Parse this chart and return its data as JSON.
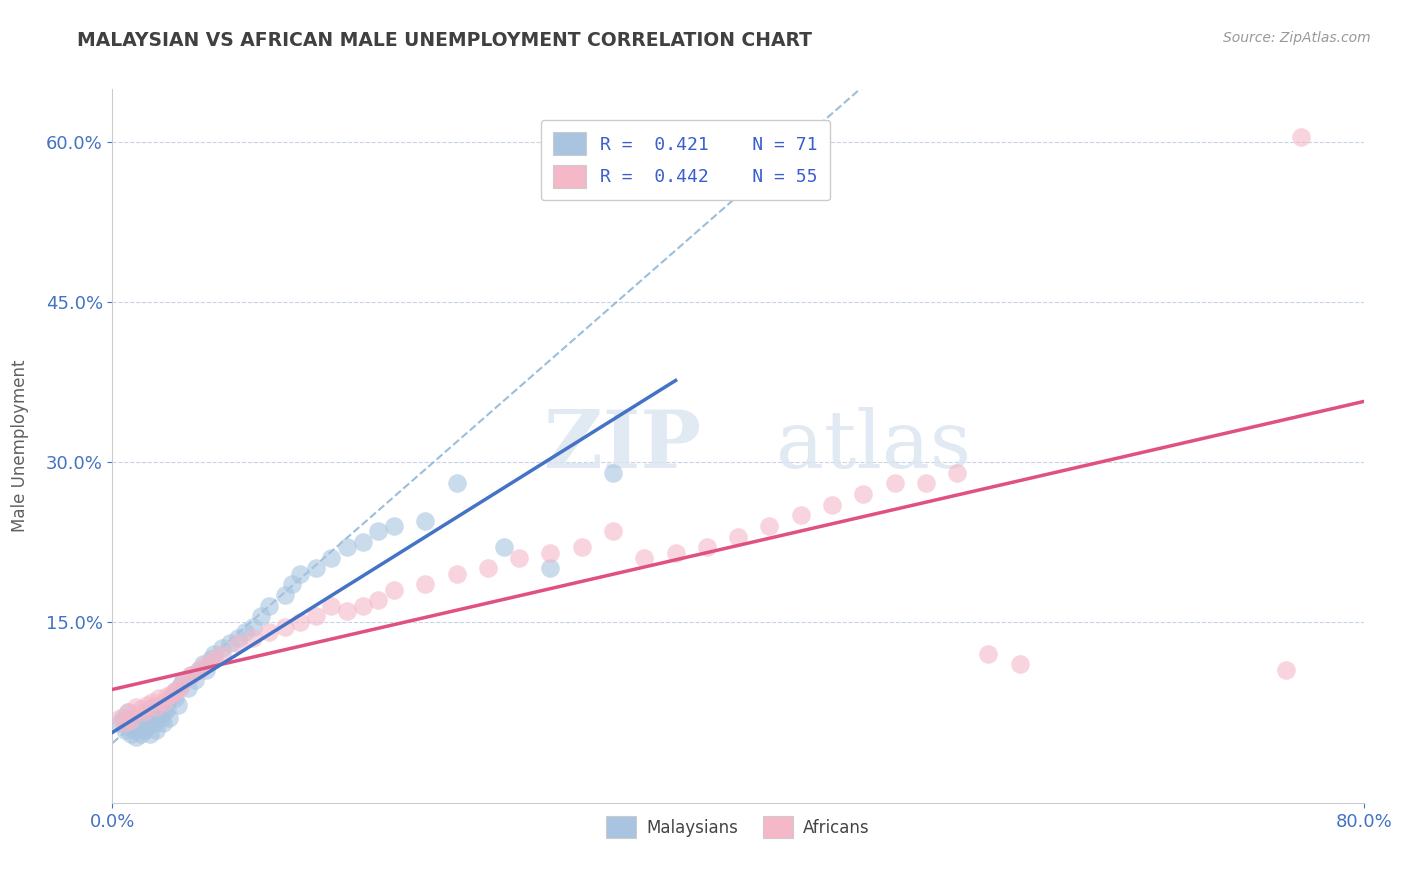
{
  "title": "MALAYSIAN VS AFRICAN MALE UNEMPLOYMENT CORRELATION CHART",
  "source": "Source: ZipAtlas.com",
  "ylabel": "Male Unemployment",
  "xlabel": "",
  "xlim": [
    0.0,
    0.8
  ],
  "ylim": [
    -0.02,
    0.65
  ],
  "ytick_positions": [
    0.15,
    0.3,
    0.45,
    0.6
  ],
  "watermark_zip": "ZIP",
  "watermark_atlas": "atlas",
  "legend_line1": "R =  0.421    N = 71",
  "legend_line2": "R =  0.442    N = 55",
  "legend_label_malaysian": "Malaysians",
  "legend_label_african": "Africans",
  "color_malaysian": "#a8c4e0",
  "color_african": "#f4b8c8",
  "trendline_malaysian_color": "#4472c4",
  "trendline_african_color": "#e05080",
  "trendline_dashed_color": "#90b8d8",
  "grid_color": "#c8d4e4",
  "background_color": "#ffffff",
  "title_color": "#404040",
  "axis_label_color": "#606060",
  "tick_color": "#4472c4",
  "malaysian_x": [
    0.005,
    0.007,
    0.008,
    0.01,
    0.01,
    0.01,
    0.012,
    0.012,
    0.013,
    0.014,
    0.015,
    0.015,
    0.015,
    0.016,
    0.017,
    0.018,
    0.02,
    0.02,
    0.021,
    0.022,
    0.022,
    0.023,
    0.024,
    0.025,
    0.025,
    0.026,
    0.027,
    0.028,
    0.03,
    0.03,
    0.031,
    0.032,
    0.033,
    0.035,
    0.035,
    0.036,
    0.038,
    0.04,
    0.04,
    0.042,
    0.043,
    0.045,
    0.048,
    0.05,
    0.053,
    0.055,
    0.058,
    0.06,
    0.063,
    0.065,
    0.07,
    0.075,
    0.08,
    0.085,
    0.09,
    0.095,
    0.1,
    0.11,
    0.115,
    0.12,
    0.13,
    0.14,
    0.15,
    0.16,
    0.17,
    0.18,
    0.2,
    0.22,
    0.25,
    0.28,
    0.32
  ],
  "malaysian_y": [
    0.055,
    0.06,
    0.048,
    0.065,
    0.058,
    0.052,
    0.05,
    0.045,
    0.06,
    0.055,
    0.048,
    0.052,
    0.042,
    0.058,
    0.05,
    0.045,
    0.055,
    0.05,
    0.048,
    0.06,
    0.052,
    0.058,
    0.045,
    0.065,
    0.07,
    0.06,
    0.055,
    0.048,
    0.07,
    0.065,
    0.06,
    0.055,
    0.065,
    0.075,
    0.068,
    0.06,
    0.08,
    0.085,
    0.078,
    0.072,
    0.09,
    0.095,
    0.088,
    0.1,
    0.095,
    0.105,
    0.11,
    0.105,
    0.115,
    0.12,
    0.125,
    0.13,
    0.135,
    0.14,
    0.145,
    0.155,
    0.165,
    0.175,
    0.185,
    0.195,
    0.2,
    0.21,
    0.22,
    0.225,
    0.235,
    0.24,
    0.245,
    0.28,
    0.22,
    0.2,
    0.29
  ],
  "african_x": [
    0.005,
    0.008,
    0.01,
    0.012,
    0.015,
    0.018,
    0.02,
    0.022,
    0.025,
    0.028,
    0.03,
    0.033,
    0.035,
    0.038,
    0.04,
    0.043,
    0.046,
    0.05,
    0.055,
    0.06,
    0.065,
    0.07,
    0.08,
    0.09,
    0.1,
    0.11,
    0.12,
    0.13,
    0.14,
    0.15,
    0.16,
    0.17,
    0.18,
    0.2,
    0.22,
    0.24,
    0.26,
    0.28,
    0.3,
    0.32,
    0.34,
    0.36,
    0.38,
    0.4,
    0.42,
    0.44,
    0.46,
    0.48,
    0.5,
    0.52,
    0.54,
    0.56,
    0.58,
    0.75,
    0.76
  ],
  "african_y": [
    0.06,
    0.055,
    0.065,
    0.058,
    0.07,
    0.068,
    0.065,
    0.072,
    0.075,
    0.07,
    0.078,
    0.075,
    0.08,
    0.082,
    0.085,
    0.088,
    0.095,
    0.1,
    0.105,
    0.11,
    0.115,
    0.12,
    0.13,
    0.135,
    0.14,
    0.145,
    0.15,
    0.155,
    0.165,
    0.16,
    0.165,
    0.17,
    0.18,
    0.185,
    0.195,
    0.2,
    0.21,
    0.215,
    0.22,
    0.235,
    0.21,
    0.215,
    0.22,
    0.23,
    0.24,
    0.25,
    0.26,
    0.27,
    0.28,
    0.28,
    0.29,
    0.12,
    0.11,
    0.105,
    0.605
  ]
}
